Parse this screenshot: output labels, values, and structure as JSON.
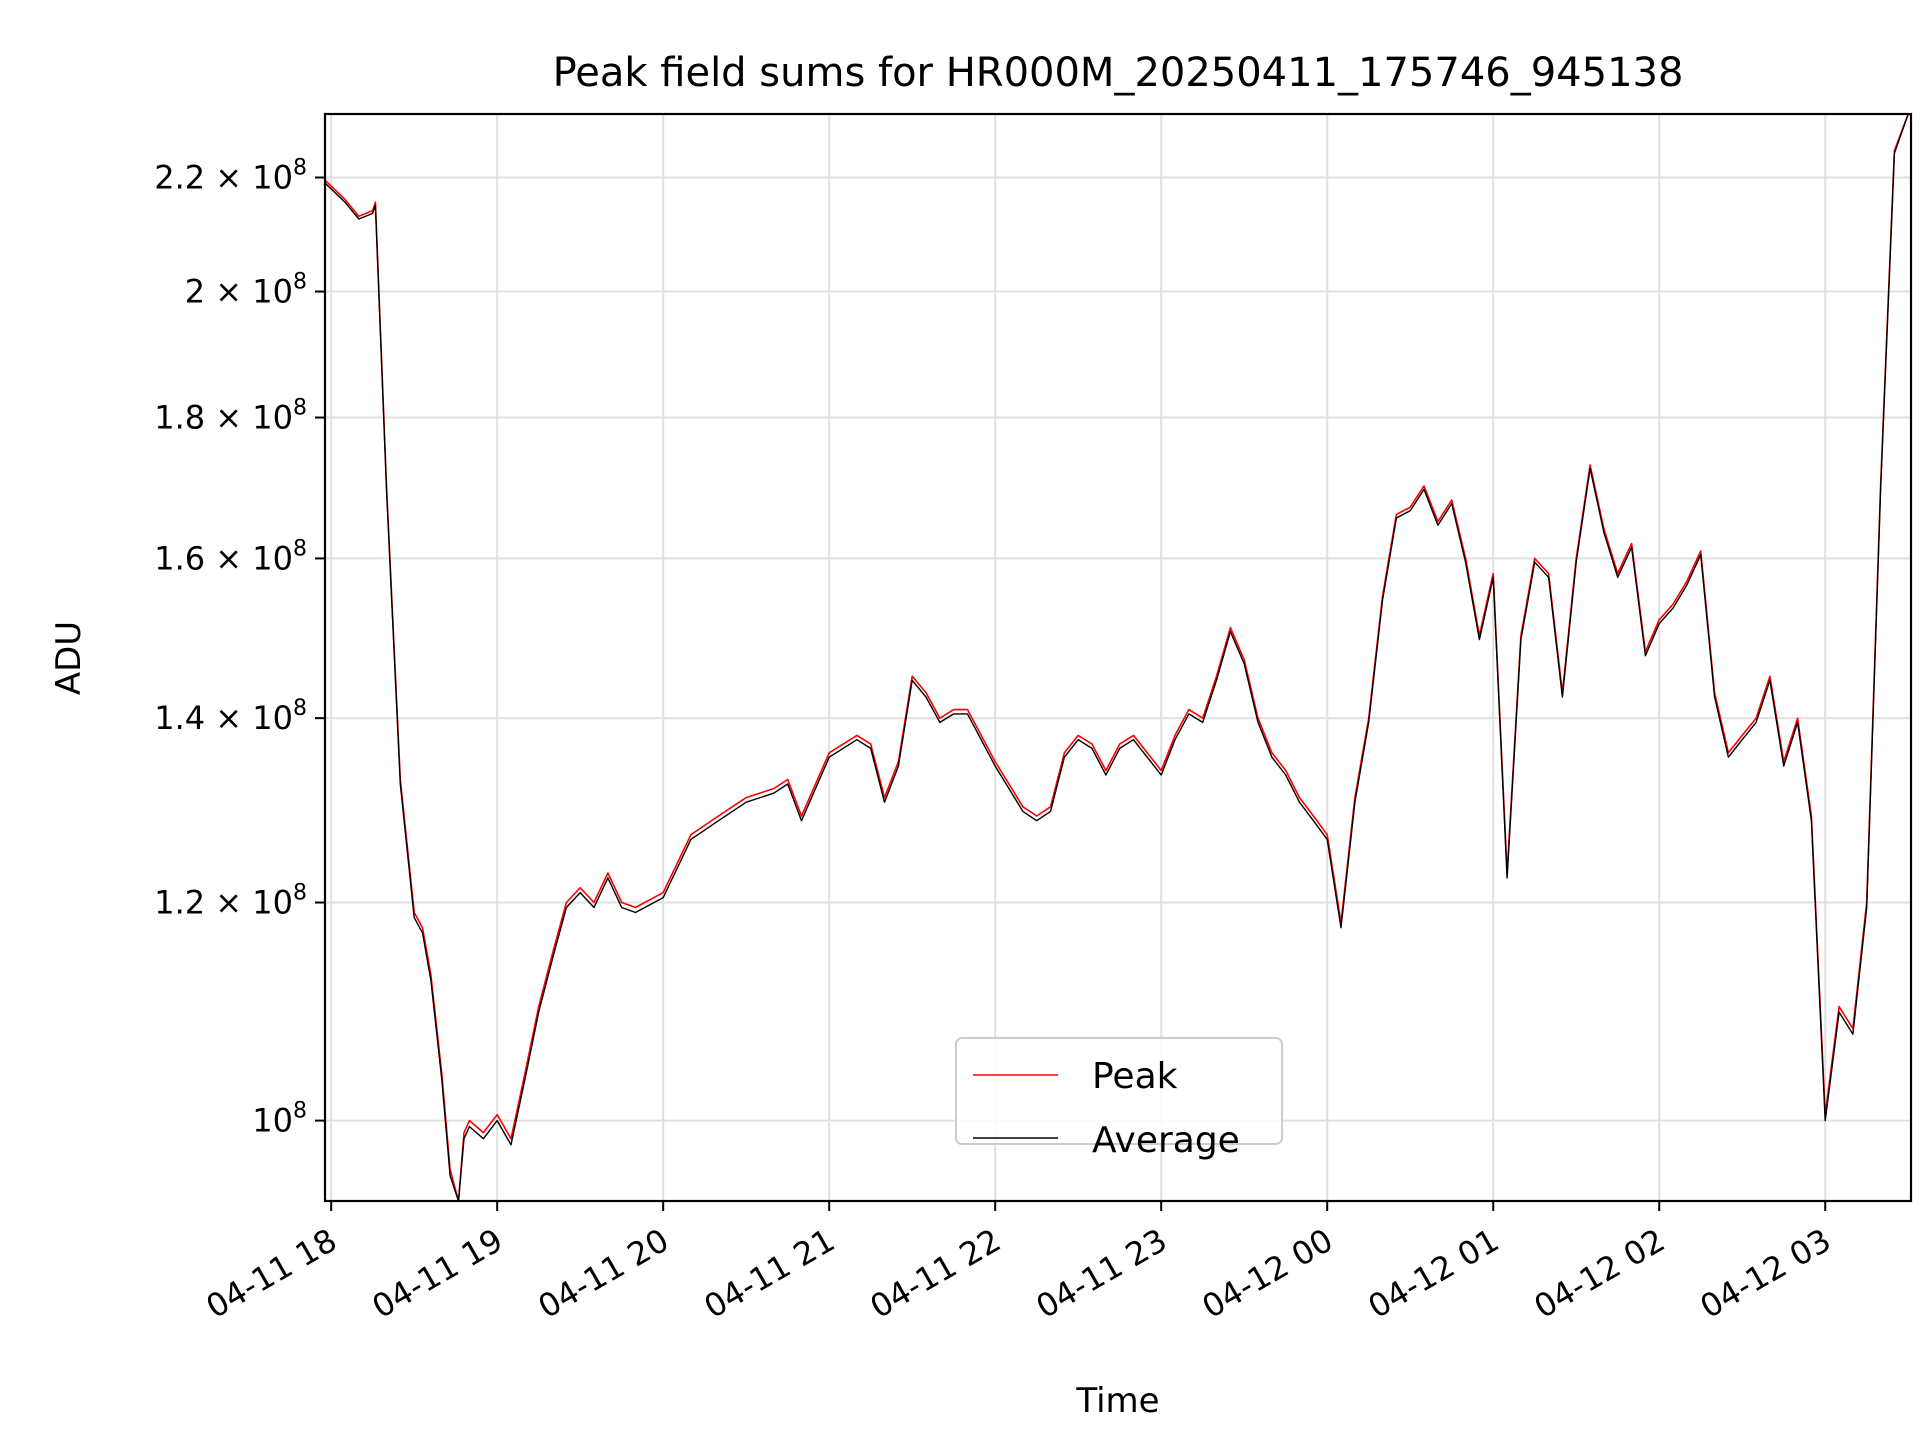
{
  "chart_data": {
    "type": "line",
    "title": "Peak field sums for HR000M_20250411_175746_945138",
    "xlabel": "Time",
    "ylabel": "ADU",
    "y_scale": "log",
    "x_range": [
      "04-11 17:57:46",
      "04-12 03:31:00"
    ],
    "ylim": [
      93500000,
      232000000
    ],
    "grid": true,
    "legend_position": "lower-center",
    "x_ticks": [
      {
        "t": "04-11 18:00",
        "label": "04-11 18"
      },
      {
        "t": "04-11 19:00",
        "label": "04-11 19"
      },
      {
        "t": "04-11 20:00",
        "label": "04-11 20"
      },
      {
        "t": "04-11 21:00",
        "label": "04-11 21"
      },
      {
        "t": "04-11 22:00",
        "label": "04-11 22"
      },
      {
        "t": "04-11 23:00",
        "label": "04-11 23"
      },
      {
        "t": "04-12 00:00",
        "label": "04-12 00"
      },
      {
        "t": "04-12 01:00",
        "label": "04-12 01"
      },
      {
        "t": "04-12 02:00",
        "label": "04-12 02"
      },
      {
        "t": "04-12 03:00",
        "label": "04-12 03"
      }
    ],
    "y_ticks": [
      {
        "value": 100000000,
        "mantissa": "",
        "exp": "8",
        "label": "10⁸"
      },
      {
        "value": 120000000,
        "mantissa": "1.2",
        "exp": "8",
        "label": "1.2 × 10⁸"
      },
      {
        "value": 140000000,
        "mantissa": "1.4",
        "exp": "8",
        "label": "1.4 × 10⁸"
      },
      {
        "value": 160000000,
        "mantissa": "1.6",
        "exp": "8",
        "label": "1.6 × 10⁸"
      },
      {
        "value": 180000000,
        "mantissa": "1.8",
        "exp": "8",
        "label": "1.8 × 10⁸"
      },
      {
        "value": 200000000,
        "mantissa": "2",
        "exp": "8",
        "label": "2 × 10⁸"
      },
      {
        "value": 220000000,
        "mantissa": "2.2",
        "exp": "8",
        "label": "2.2 × 10⁸"
      }
    ],
    "x": [
      "04-11 17:57",
      "04-11 18:05",
      "04-11 18:10",
      "04-11 18:15",
      "04-11 18:16",
      "04-11 18:20",
      "04-11 18:25",
      "04-11 18:30",
      "04-11 18:33",
      "04-11 18:36",
      "04-11 18:40",
      "04-11 18:43",
      "04-11 18:46",
      "04-11 18:48",
      "04-11 18:50",
      "04-11 18:55",
      "04-11 19:00",
      "04-11 19:05",
      "04-11 19:10",
      "04-11 19:15",
      "04-11 19:20",
      "04-11 19:25",
      "04-11 19:30",
      "04-11 19:35",
      "04-11 19:40",
      "04-11 19:45",
      "04-11 19:50",
      "04-11 20:00",
      "04-11 20:10",
      "04-11 20:20",
      "04-11 20:30",
      "04-11 20:40",
      "04-11 20:45",
      "04-11 20:50",
      "04-11 21:00",
      "04-11 21:10",
      "04-11 21:15",
      "04-11 21:20",
      "04-11 21:25",
      "04-11 21:30",
      "04-11 21:35",
      "04-11 21:40",
      "04-11 21:45",
      "04-11 21:50",
      "04-11 22:00",
      "04-11 22:10",
      "04-11 22:15",
      "04-11 22:20",
      "04-11 22:25",
      "04-11 22:30",
      "04-11 22:35",
      "04-11 22:40",
      "04-11 22:45",
      "04-11 22:50",
      "04-11 23:00",
      "04-11 23:05",
      "04-11 23:10",
      "04-11 23:15",
      "04-11 23:20",
      "04-11 23:25",
      "04-11 23:30",
      "04-11 23:35",
      "04-11 23:40",
      "04-11 23:45",
      "04-11 23:50",
      "04-11 23:55",
      "04-12 00:00",
      "04-12 00:05",
      "04-12 00:10",
      "04-12 00:15",
      "04-12 00:20",
      "04-12 00:25",
      "04-12 00:30",
      "04-12 00:35",
      "04-12 00:40",
      "04-12 00:45",
      "04-12 00:50",
      "04-12 00:55",
      "04-12 01:00",
      "04-12 01:05",
      "04-12 01:10",
      "04-12 01:15",
      "04-12 01:20",
      "04-12 01:25",
      "04-12 01:30",
      "04-12 01:35",
      "04-12 01:40",
      "04-12 01:45",
      "04-12 01:50",
      "04-12 01:55",
      "04-12 02:00",
      "04-12 02:05",
      "04-12 02:10",
      "04-12 02:15",
      "04-12 02:20",
      "04-12 02:25",
      "04-12 02:30",
      "04-12 02:35",
      "04-12 02:40",
      "04-12 02:45",
      "04-12 02:50",
      "04-12 02:55",
      "04-12 03:00",
      "04-12 03:05",
      "04-12 03:10",
      "04-12 03:15",
      "04-12 03:20",
      "04-12 03:25",
      "04-12 03:30"
    ],
    "series": [
      {
        "name": "Peak",
        "color": "#ff0000",
        "values": [
          219500000,
          216000000,
          213000000,
          214000000,
          215500000,
          170000000,
          133000000,
          119000000,
          117500000,
          113000000,
          104000000,
          96000000,
          93500000,
          99000000,
          100000000,
          99000000,
          100500000,
          98500000,
          104000000,
          110000000,
          115000000,
          120000000,
          121500000,
          120000000,
          123000000,
          120000000,
          119500000,
          121000000,
          127000000,
          129000000,
          131000000,
          132000000,
          133000000,
          129000000,
          136000000,
          138000000,
          137000000,
          131000000,
          135000000,
          145000000,
          143000000,
          140000000,
          141000000,
          141000000,
          135000000,
          130000000,
          129000000,
          130000000,
          136000000,
          138000000,
          137000000,
          134000000,
          137000000,
          138000000,
          134000000,
          138000000,
          141000000,
          140000000,
          145000000,
          151000000,
          147000000,
          140000000,
          136000000,
          134000000,
          131000000,
          129000000,
          127000000,
          118000000,
          131000000,
          140000000,
          155000000,
          166000000,
          167000000,
          170000000,
          165000000,
          168000000,
          160000000,
          150000000,
          158000000,
          123000000,
          150000000,
          160000000,
          158000000,
          143000000,
          160000000,
          173000000,
          164000000,
          158000000,
          162000000,
          148000000,
          152000000,
          154000000,
          157000000,
          161000000,
          143000000,
          136000000,
          138000000,
          140000000,
          145000000,
          135000000,
          140000000,
          129000000,
          100500000,
          110000000,
          108000000,
          120000000,
          170000000,
          225000000,
          232000000
        ]
      },
      {
        "name": "Average",
        "color": "#000000",
        "values": [
          219000000,
          215500000,
          212500000,
          213500000,
          215000000,
          169500000,
          132500000,
          118500000,
          117000000,
          112500000,
          103500000,
          95500000,
          93500000,
          98500000,
          99500000,
          98500000,
          100000000,
          98000000,
          103500000,
          109500000,
          114500000,
          119500000,
          121000000,
          119500000,
          122500000,
          119500000,
          119000000,
          120500000,
          126500000,
          128500000,
          130500000,
          131500000,
          132500000,
          128500000,
          135500000,
          137500000,
          136500000,
          130500000,
          134500000,
          144500000,
          142500000,
          139500000,
          140500000,
          140500000,
          134500000,
          129500000,
          128500000,
          129500000,
          135500000,
          137500000,
          136500000,
          133500000,
          136500000,
          137500000,
          133500000,
          137500000,
          140500000,
          139500000,
          144500000,
          150500000,
          146500000,
          139500000,
          135500000,
          133500000,
          130500000,
          128500000,
          126500000,
          117500000,
          130500000,
          139500000,
          154500000,
          165500000,
          166500000,
          169500000,
          164500000,
          167500000,
          159500000,
          149500000,
          157500000,
          122500000,
          149500000,
          159500000,
          157500000,
          142500000,
          159500000,
          172500000,
          163500000,
          157500000,
          161500000,
          147500000,
          151500000,
          153500000,
          156500000,
          160500000,
          142500000,
          135500000,
          137500000,
          139500000,
          144500000,
          134500000,
          139500000,
          128500000,
          100000000,
          109500000,
          107500000,
          119500000,
          169500000,
          224500000,
          232000000
        ]
      }
    ]
  }
}
